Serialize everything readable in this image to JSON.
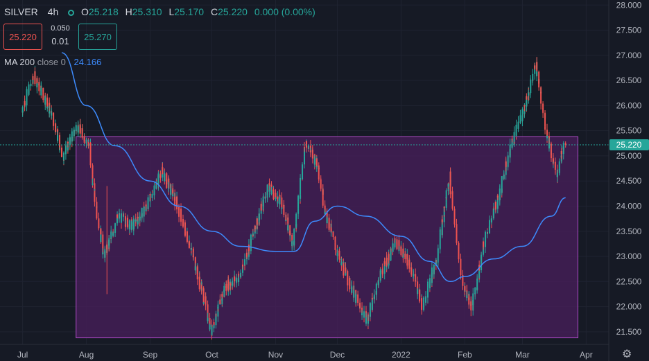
{
  "header": {
    "symbol": "SILVER",
    "timeframe": "4h",
    "open_label": "O",
    "open": "25.218",
    "high_label": "H",
    "high": "25.310",
    "low_label": "L",
    "low": "25.170",
    "close_label": "C",
    "close": "25.220",
    "change": "0.000 (0.00%)"
  },
  "trade": {
    "sell_price": "25.220",
    "spread_top": "0.050",
    "spread_bottom": "0.01",
    "buy_price": "25.270"
  },
  "indicator": {
    "name": "MA 200",
    "params": "close 0",
    "value": "24.166"
  },
  "colors": {
    "background": "#161a25",
    "up": "#26a69a",
    "down": "#ef5350",
    "ma": "#3d8bfd",
    "range_fill": "#4a1f5c",
    "range_border": "#b04cc8",
    "price_tag": "#26a69a"
  },
  "chart_data": {
    "type": "line",
    "subtype": "candlestick",
    "x_labels": [
      "Jul",
      "Aug",
      "Sep",
      "Oct",
      "Nov",
      "Dec",
      "2022",
      "Feb",
      "Mar",
      "Apr"
    ],
    "y_ticks": [
      "28.000",
      "27.500",
      "27.000",
      "26.500",
      "26.000",
      "25.500",
      "25.000",
      "24.500",
      "24.000",
      "23.500",
      "23.000",
      "22.500",
      "22.000",
      "21.500"
    ],
    "ylim": [
      21.25,
      28.1
    ],
    "last_price": "25.220",
    "last_price_value": 25.22,
    "range_box": {
      "low": 21.38,
      "high": 25.38,
      "start": "2021-07-27",
      "end": "2022-03-28"
    },
    "price_path": [
      [
        "2021-07-01",
        25.9
      ],
      [
        "2021-07-07",
        26.6
      ],
      [
        "2021-07-14",
        26.0
      ],
      [
        "2021-07-21",
        25.0
      ],
      [
        "2021-07-28",
        25.6
      ],
      [
        "2021-08-03",
        25.2
      ],
      [
        "2021-08-05",
        24.3
      ],
      [
        "2021-08-10",
        23.0
      ],
      [
        "2021-08-17",
        23.8
      ],
      [
        "2021-08-24",
        23.6
      ],
      [
        "2021-08-31",
        24.0
      ],
      [
        "2021-09-07",
        24.7
      ],
      [
        "2021-09-14",
        24.1
      ],
      [
        "2021-09-21",
        23.2
      ],
      [
        "2021-09-28",
        22.1
      ],
      [
        "2021-10-01",
        21.5
      ],
      [
        "2021-10-08",
        22.4
      ],
      [
        "2021-10-15",
        22.6
      ],
      [
        "2021-10-22",
        23.5
      ],
      [
        "2021-10-29",
        24.4
      ],
      [
        "2021-11-05",
        24.0
      ],
      [
        "2021-11-10",
        23.2
      ],
      [
        "2021-11-16",
        25.3
      ],
      [
        "2021-11-22",
        24.8
      ],
      [
        "2021-11-26",
        23.8
      ],
      [
        "2021-12-03",
        22.9
      ],
      [
        "2021-12-10",
        22.2
      ],
      [
        "2021-12-16",
        21.7
      ],
      [
        "2021-12-22",
        22.6
      ],
      [
        "2021-12-30",
        23.3
      ],
      [
        "2022-01-06",
        22.8
      ],
      [
        "2022-01-12",
        22.0
      ],
      [
        "2022-01-19",
        23.0
      ],
      [
        "2022-01-25",
        24.6
      ],
      [
        "2022-01-31",
        22.5
      ],
      [
        "2022-02-05",
        22.0
      ],
      [
        "2022-02-11",
        23.3
      ],
      [
        "2022-02-18",
        24.2
      ],
      [
        "2022-02-24",
        25.2
      ],
      [
        "2022-03-02",
        25.9
      ],
      [
        "2022-03-08",
        26.8
      ],
      [
        "2022-03-14",
        25.3
      ],
      [
        "2022-03-18",
        24.6
      ],
      [
        "2022-03-22",
        25.22
      ]
    ],
    "ma_path": [
      [
        "2021-07-20",
        27.05
      ],
      [
        "2021-08-01",
        26.0
      ],
      [
        "2021-08-15",
        25.2
      ],
      [
        "2021-09-01",
        24.5
      ],
      [
        "2021-09-15",
        24.0
      ],
      [
        "2021-10-01",
        23.5
      ],
      [
        "2021-10-15",
        23.2
      ],
      [
        "2021-11-01",
        23.1
      ],
      [
        "2021-11-10",
        23.1
      ],
      [
        "2021-11-20",
        23.7
      ],
      [
        "2021-12-01",
        24.0
      ],
      [
        "2021-12-15",
        23.8
      ],
      [
        "2022-01-01",
        23.4
      ],
      [
        "2022-01-15",
        22.9
      ],
      [
        "2022-01-25",
        22.5
      ],
      [
        "2022-02-01",
        22.6
      ],
      [
        "2022-02-15",
        22.95
      ],
      [
        "2022-03-01",
        23.2
      ],
      [
        "2022-03-15",
        23.8
      ],
      [
        "2022-03-22",
        24.166
      ]
    ]
  }
}
